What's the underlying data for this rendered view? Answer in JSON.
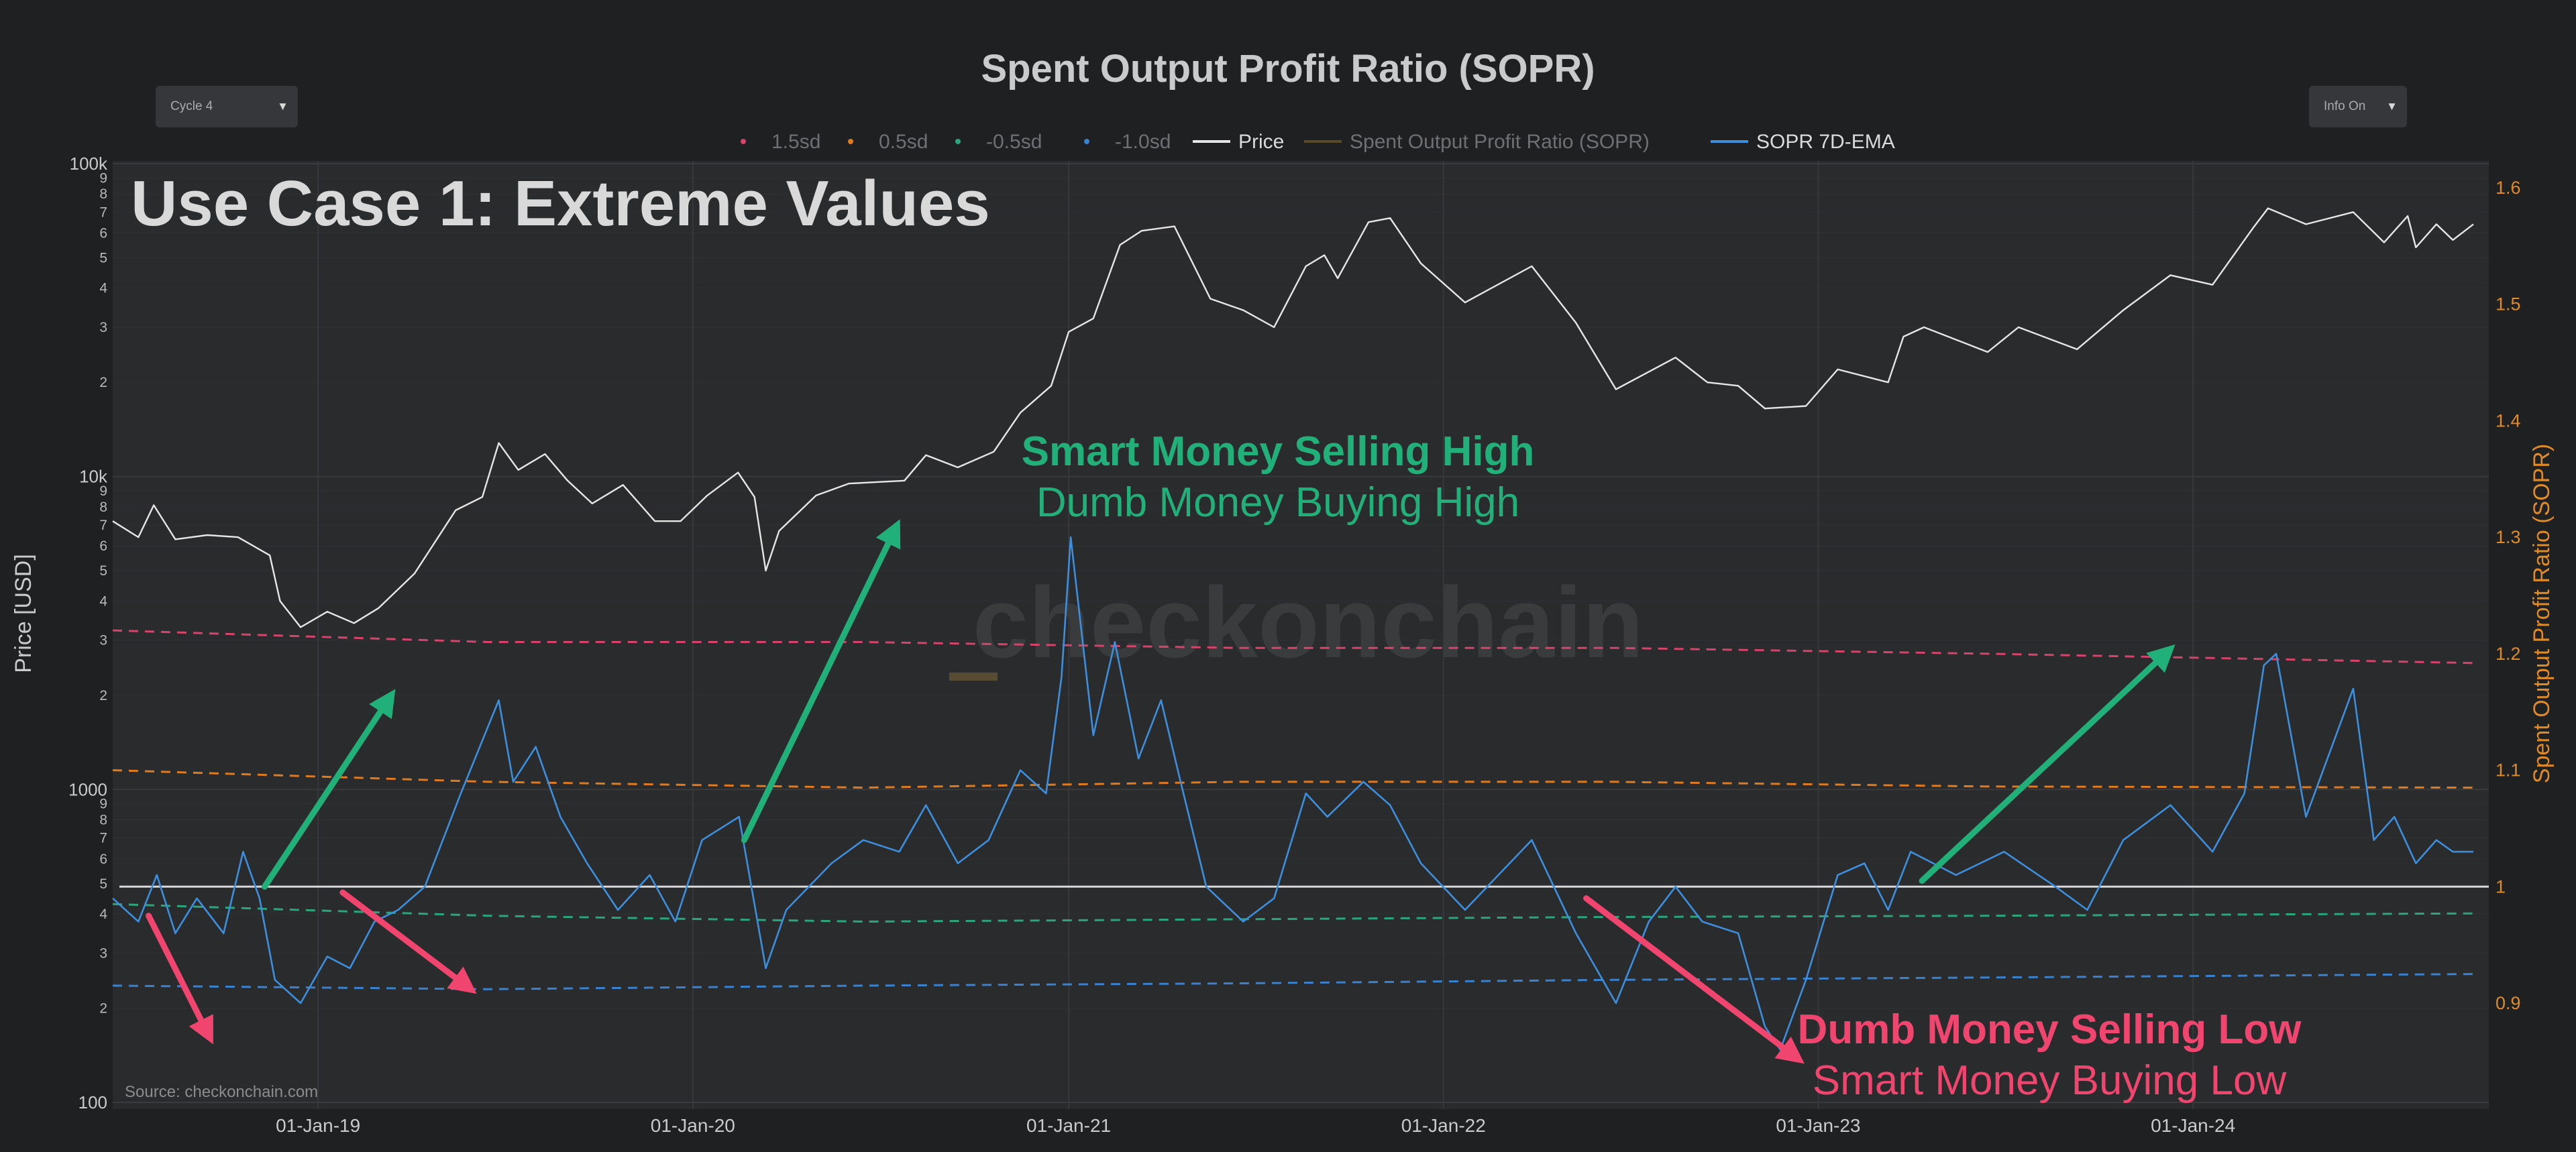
{
  "title": "Spent Output Profit Ratio (SOPR)",
  "controls": {
    "cycle_select": "Cycle 4",
    "info_select": "Info On"
  },
  "overlay_title": "Use Case 1: Extreme Values",
  "watermark": "checkonchain",
  "source": "Source: checkonchain.com",
  "annotations": {
    "top": {
      "line1": "Smart Money Selling High",
      "line2": "Dumb Money Buying High"
    },
    "bottom": {
      "line1": "Dumb Money Selling Low",
      "line2": "Smart Money Buying Low"
    }
  },
  "colors": {
    "background": "#1f2022",
    "plot_bg": "#2a2b2d",
    "price": "#e6e6e6",
    "sopr_ema": "#3d8fdd",
    "sd_1_5": "#d6436b",
    "sd_0_5": "#e07a1f",
    "sd_neg_0_5": "#2aa67d",
    "sd_neg_1_0": "#3a82cf",
    "right_axis": "#e08a25",
    "green": "#22b07a",
    "pink": "#f0456f"
  },
  "chart_data": {
    "type": "line",
    "title": "Spent Output Profit Ratio (SOPR)",
    "legend": [
      "1.5sd",
      "0.5sd",
      "-0.5sd",
      "-1.0sd",
      "Price",
      "Spent Output Profit Ratio (SOPR)",
      "SOPR 7D-EMA"
    ],
    "legend_position": "top",
    "x_range": [
      "2018-06-15",
      "2024-10-15"
    ],
    "x_ticks": [
      "01-Jan-19",
      "01-Jan-20",
      "01-Jan-21",
      "01-Jan-22",
      "01-Jan-23",
      "01-Jan-24"
    ],
    "x_tick_dates": [
      "2019-01-01",
      "2020-01-01",
      "2021-01-01",
      "2022-01-01",
      "2023-01-01",
      "2024-01-01"
    ],
    "left_axis": {
      "label": "Price [USD]",
      "scale": "log",
      "range": [
        100,
        100000
      ],
      "major_ticks": [
        {
          "v": 100,
          "t": "100"
        },
        {
          "v": 1000,
          "t": "1000"
        },
        {
          "v": 10000,
          "t": "10k"
        },
        {
          "v": 100000,
          "t": "100k"
        }
      ],
      "minor_ticks": [
        2,
        3,
        4,
        5,
        6,
        7,
        8,
        9
      ]
    },
    "right_axis": {
      "label": "Spent Output Profit Ratio (SOPR)",
      "range": [
        0.81,
        1.62
      ],
      "ticks": [
        0.9,
        1,
        1.1,
        1.2,
        1.3,
        1.4,
        1.5,
        1.6
      ],
      "tick_labels": [
        "0.9",
        "1",
        "1.1",
        "1.2",
        "1.3",
        "1.4",
        "1.5",
        "1.6"
      ]
    },
    "grid": true,
    "series": [
      {
        "name": "Price",
        "axis": "left",
        "points": [
          [
            "2018-06-15",
            7200
          ],
          [
            "2018-07-10",
            6400
          ],
          [
            "2018-07-25",
            8100
          ],
          [
            "2018-08-15",
            6300
          ],
          [
            "2018-09-15",
            6500
          ],
          [
            "2018-10-15",
            6400
          ],
          [
            "2018-11-15",
            5600
          ],
          [
            "2018-11-25",
            4000
          ],
          [
            "2018-12-15",
            3300
          ],
          [
            "2019-01-10",
            3700
          ],
          [
            "2019-02-05",
            3400
          ],
          [
            "2019-03-01",
            3800
          ],
          [
            "2019-04-05",
            4900
          ],
          [
            "2019-05-15",
            7800
          ],
          [
            "2019-06-10",
            8600
          ],
          [
            "2019-06-26",
            12800
          ],
          [
            "2019-07-15",
            10500
          ],
          [
            "2019-08-10",
            11800
          ],
          [
            "2019-09-01",
            9700
          ],
          [
            "2019-09-25",
            8200
          ],
          [
            "2019-10-25",
            9400
          ],
          [
            "2019-11-25",
            7200
          ],
          [
            "2019-12-20",
            7200
          ],
          [
            "2020-01-15",
            8700
          ],
          [
            "2020-02-14",
            10300
          ],
          [
            "2020-03-01",
            8600
          ],
          [
            "2020-03-12",
            5000
          ],
          [
            "2020-03-25",
            6700
          ],
          [
            "2020-04-30",
            8700
          ],
          [
            "2020-06-01",
            9500
          ],
          [
            "2020-07-25",
            9700
          ],
          [
            "2020-08-15",
            11700
          ],
          [
            "2020-09-15",
            10700
          ],
          [
            "2020-10-20",
            12000
          ],
          [
            "2020-11-15",
            16000
          ],
          [
            "2020-12-15",
            19500
          ],
          [
            "2021-01-01",
            29000
          ],
          [
            "2021-01-25",
            32000
          ],
          [
            "2021-02-20",
            55000
          ],
          [
            "2021-03-13",
            61000
          ],
          [
            "2021-04-14",
            63000
          ],
          [
            "2021-05-19",
            37000
          ],
          [
            "2021-06-20",
            34000
          ],
          [
            "2021-07-20",
            30000
          ],
          [
            "2021-08-20",
            47000
          ],
          [
            "2021-09-07",
            51000
          ],
          [
            "2021-09-20",
            43000
          ],
          [
            "2021-10-20",
            65000
          ],
          [
            "2021-11-10",
            67000
          ],
          [
            "2021-12-10",
            48000
          ],
          [
            "2022-01-22",
            36000
          ],
          [
            "2022-03-28",
            47000
          ],
          [
            "2022-05-10",
            31000
          ],
          [
            "2022-06-18",
            19000
          ],
          [
            "2022-08-15",
            24000
          ],
          [
            "2022-09-15",
            20000
          ],
          [
            "2022-10-15",
            19500
          ],
          [
            "2022-11-10",
            16500
          ],
          [
            "2022-12-20",
            16800
          ],
          [
            "2023-01-20",
            22000
          ],
          [
            "2023-03-10",
            20000
          ],
          [
            "2023-03-25",
            28000
          ],
          [
            "2023-04-14",
            30000
          ],
          [
            "2023-06-15",
            25000
          ],
          [
            "2023-07-15",
            30000
          ],
          [
            "2023-09-10",
            25500
          ],
          [
            "2023-10-25",
            34000
          ],
          [
            "2023-12-10",
            44000
          ],
          [
            "2024-01-20",
            41000
          ],
          [
            "2024-02-28",
            62000
          ],
          [
            "2024-03-14",
            72000
          ],
          [
            "2024-04-20",
            64000
          ],
          [
            "2024-06-05",
            70000
          ],
          [
            "2024-07-05",
            56000
          ],
          [
            "2024-07-28",
            68000
          ],
          [
            "2024-08-05",
            54000
          ],
          [
            "2024-08-25",
            64000
          ],
          [
            "2024-09-10",
            57000
          ],
          [
            "2024-09-30",
            64000
          ]
        ]
      },
      {
        "name": "SOPR 7D-EMA",
        "axis": "right",
        "points": [
          [
            "2018-06-15",
            0.99
          ],
          [
            "2018-07-10",
            0.97
          ],
          [
            "2018-07-28",
            1.01
          ],
          [
            "2018-08-15",
            0.96
          ],
          [
            "2018-09-05",
            0.99
          ],
          [
            "2018-10-01",
            0.96
          ],
          [
            "2018-10-20",
            1.03
          ],
          [
            "2018-11-05",
            0.99
          ],
          [
            "2018-11-20",
            0.92
          ],
          [
            "2018-12-15",
            0.9
          ],
          [
            "2019-01-10",
            0.94
          ],
          [
            "2019-02-01",
            0.93
          ],
          [
            "2019-02-25",
            0.97
          ],
          [
            "2019-03-20",
            0.98
          ],
          [
            "2019-04-15",
            1.0
          ],
          [
            "2019-05-20",
            1.08
          ],
          [
            "2019-06-26",
            1.16
          ],
          [
            "2019-07-10",
            1.09
          ],
          [
            "2019-08-01",
            1.12
          ],
          [
            "2019-08-25",
            1.06
          ],
          [
            "2019-09-20",
            1.02
          ],
          [
            "2019-10-20",
            0.98
          ],
          [
            "2019-11-20",
            1.01
          ],
          [
            "2019-12-15",
            0.97
          ],
          [
            "2020-01-10",
            1.04
          ],
          [
            "2020-02-15",
            1.06
          ],
          [
            "2020-03-12",
            0.93
          ],
          [
            "2020-04-01",
            0.98
          ],
          [
            "2020-05-15",
            1.02
          ],
          [
            "2020-06-15",
            1.04
          ],
          [
            "2020-07-20",
            1.03
          ],
          [
            "2020-08-15",
            1.07
          ],
          [
            "2020-09-15",
            1.02
          ],
          [
            "2020-10-15",
            1.04
          ],
          [
            "2020-11-15",
            1.1
          ],
          [
            "2020-12-10",
            1.08
          ],
          [
            "2020-12-25",
            1.18
          ],
          [
            "2021-01-03",
            1.3
          ],
          [
            "2021-01-25",
            1.13
          ],
          [
            "2021-02-15",
            1.21
          ],
          [
            "2021-03-10",
            1.11
          ],
          [
            "2021-04-01",
            1.16
          ],
          [
            "2021-04-20",
            1.09
          ],
          [
            "2021-05-15",
            1.0
          ],
          [
            "2021-06-20",
            0.97
          ],
          [
            "2021-07-20",
            0.99
          ],
          [
            "2021-08-20",
            1.08
          ],
          [
            "2021-09-10",
            1.06
          ],
          [
            "2021-10-15",
            1.09
          ],
          [
            "2021-11-10",
            1.07
          ],
          [
            "2021-12-10",
            1.02
          ],
          [
            "2022-01-22",
            0.98
          ],
          [
            "2022-03-28",
            1.04
          ],
          [
            "2022-05-10",
            0.96
          ],
          [
            "2022-06-18",
            0.9
          ],
          [
            "2022-07-20",
            0.97
          ],
          [
            "2022-08-15",
            1.0
          ],
          [
            "2022-09-10",
            0.97
          ],
          [
            "2022-10-15",
            0.96
          ],
          [
            "2022-11-10",
            0.88
          ],
          [
            "2022-11-25",
            0.86
          ],
          [
            "2022-12-20",
            0.92
          ],
          [
            "2023-01-20",
            1.01
          ],
          [
            "2023-02-15",
            1.02
          ],
          [
            "2023-03-10",
            0.98
          ],
          [
            "2023-04-01",
            1.03
          ],
          [
            "2023-05-15",
            1.01
          ],
          [
            "2023-07-01",
            1.03
          ],
          [
            "2023-08-20",
            1.0
          ],
          [
            "2023-09-20",
            0.98
          ],
          [
            "2023-10-25",
            1.04
          ],
          [
            "2023-12-10",
            1.07
          ],
          [
            "2024-01-20",
            1.03
          ],
          [
            "2024-02-20",
            1.08
          ],
          [
            "2024-03-10",
            1.19
          ],
          [
            "2024-03-22",
            1.2
          ],
          [
            "2024-04-20",
            1.06
          ],
          [
            "2024-06-05",
            1.17
          ],
          [
            "2024-06-25",
            1.04
          ],
          [
            "2024-07-15",
            1.06
          ],
          [
            "2024-08-05",
            1.02
          ],
          [
            "2024-08-25",
            1.04
          ],
          [
            "2024-09-10",
            1.03
          ],
          [
            "2024-09-30",
            1.03
          ]
        ]
      },
      {
        "name": "1.5sd",
        "axis": "right",
        "style": "dashed",
        "points": [
          [
            "2018-06-15",
            1.22
          ],
          [
            "2019-06-15",
            1.21
          ],
          [
            "2020-06-15",
            1.21
          ],
          [
            "2021-06-15",
            1.205
          ],
          [
            "2022-06-15",
            1.205
          ],
          [
            "2023-06-15",
            1.2
          ],
          [
            "2024-09-30",
            1.192
          ]
        ]
      },
      {
        "name": "0.5sd",
        "axis": "right",
        "style": "dashed",
        "points": [
          [
            "2018-06-15",
            1.1
          ],
          [
            "2019-06-15",
            1.09
          ],
          [
            "2020-06-15",
            1.085
          ],
          [
            "2021-06-15",
            1.09
          ],
          [
            "2022-06-15",
            1.09
          ],
          [
            "2023-06-15",
            1.086
          ],
          [
            "2024-09-30",
            1.085
          ]
        ]
      },
      {
        "name": "-0.5sd",
        "axis": "right",
        "style": "dashed",
        "points": [
          [
            "2018-06-15",
            0.985
          ],
          [
            "2019-06-15",
            0.975
          ],
          [
            "2020-06-15",
            0.97
          ],
          [
            "2021-06-15",
            0.972
          ],
          [
            "2022-06-15",
            0.974
          ],
          [
            "2023-06-15",
            0.975
          ],
          [
            "2024-09-30",
            0.977
          ]
        ]
      },
      {
        "name": "-1.0sd",
        "axis": "right",
        "style": "dashed",
        "points": [
          [
            "2018-06-15",
            0.915
          ],
          [
            "2019-06-15",
            0.912
          ],
          [
            "2020-06-15",
            0.915
          ],
          [
            "2021-06-15",
            0.917
          ],
          [
            "2022-06-15",
            0.92
          ],
          [
            "2023-06-15",
            0.922
          ],
          [
            "2024-09-30",
            0.925
          ]
        ]
      },
      {
        "name": "Spent Output Profit Ratio (SOPR)",
        "axis": "right",
        "points": [
          [
            "2018-06-15",
            1.0
          ],
          [
            "2024-09-30",
            1.0
          ]
        ]
      }
    ],
    "reference_line": {
      "axis": "right",
      "value": 1
    },
    "arrows": [
      {
        "color": "pink",
        "from": [
          "2018-07-20",
          0.975
        ],
        "to": [
          "2018-09-15",
          0.875
        ]
      },
      {
        "color": "green",
        "from": [
          "2018-11-10",
          1.0
        ],
        "to": [
          "2019-03-10",
          1.16
        ]
      },
      {
        "color": "pink",
        "from": [
          "2019-01-25",
          0.995
        ],
        "to": [
          "2019-05-25",
          0.915
        ]
      },
      {
        "color": "green",
        "from": [
          "2020-02-20",
          1.04
        ],
        "to": [
          "2020-07-15",
          1.305
        ]
      },
      {
        "color": "pink",
        "from": [
          "2022-05-20",
          0.99
        ],
        "to": [
          "2022-12-08",
          0.855
        ]
      },
      {
        "color": "green",
        "from": [
          "2023-04-12",
          1.005
        ],
        "to": [
          "2023-12-05",
          1.2
        ]
      }
    ]
  }
}
